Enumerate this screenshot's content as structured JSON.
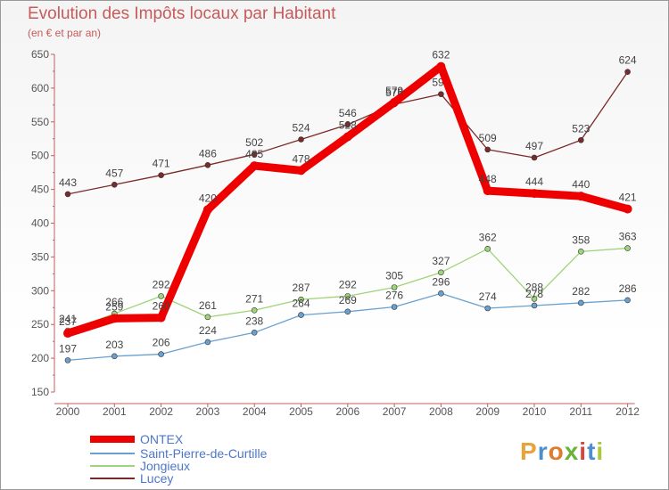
{
  "header": {
    "title": "Evolution des Impôts locaux par Habitant",
    "subtitle": "(en € et par an)"
  },
  "chart_data": {
    "type": "line",
    "title": "Evolution des Impôts locaux par Habitant",
    "subtitle": "(en € et par an)",
    "xlabel": "",
    "ylabel": "",
    "ylim": [
      150,
      650
    ],
    "yticks": [
      150,
      200,
      250,
      300,
      350,
      400,
      450,
      500,
      550,
      600,
      650
    ],
    "categories": [
      "2000",
      "2001",
      "2002",
      "2003",
      "2004",
      "2005",
      "2006",
      "2007",
      "2008",
      "2009",
      "2010",
      "2011",
      "2012"
    ],
    "series": [
      {
        "name": "Lucey",
        "color": "#7a2a2a",
        "values": [
          443,
          457,
          471,
          486,
          502,
          524,
          546,
          576,
          591,
          509,
          497,
          523,
          624
        ]
      },
      {
        "name": "Jongieux",
        "color": "#9ed47a",
        "values": [
          241,
          266,
          292,
          261,
          271,
          287,
          292,
          305,
          327,
          362,
          288,
          358,
          363
        ]
      },
      {
        "name": "Saint-Pierre-de-Curtille",
        "color": "#6aa0d0",
        "values": [
          197,
          203,
          206,
          224,
          238,
          264,
          269,
          276,
          296,
          274,
          278,
          282,
          286
        ]
      },
      {
        "name": "ONTEX",
        "color": "#ee0000",
        "values": [
          237,
          259,
          260,
          420,
          485,
          478,
          528,
          579,
          632,
          448,
          444,
          440,
          421
        ]
      }
    ],
    "legend": [
      "ONTEX",
      "Saint-Pierre-de-Curtille",
      "Jongieux",
      "Lucey"
    ],
    "legend_position": "bottom-left",
    "grid": false
  },
  "brand": {
    "logo_letters": [
      "P",
      "r",
      "o",
      "x",
      "i",
      "t",
      "i"
    ],
    "logo_colors": [
      "#e8a33a",
      "#4b8fd0",
      "#e07a2e",
      "#6ab33a",
      "#d8443a",
      "#4b8fd0",
      "#a9c93a"
    ]
  }
}
